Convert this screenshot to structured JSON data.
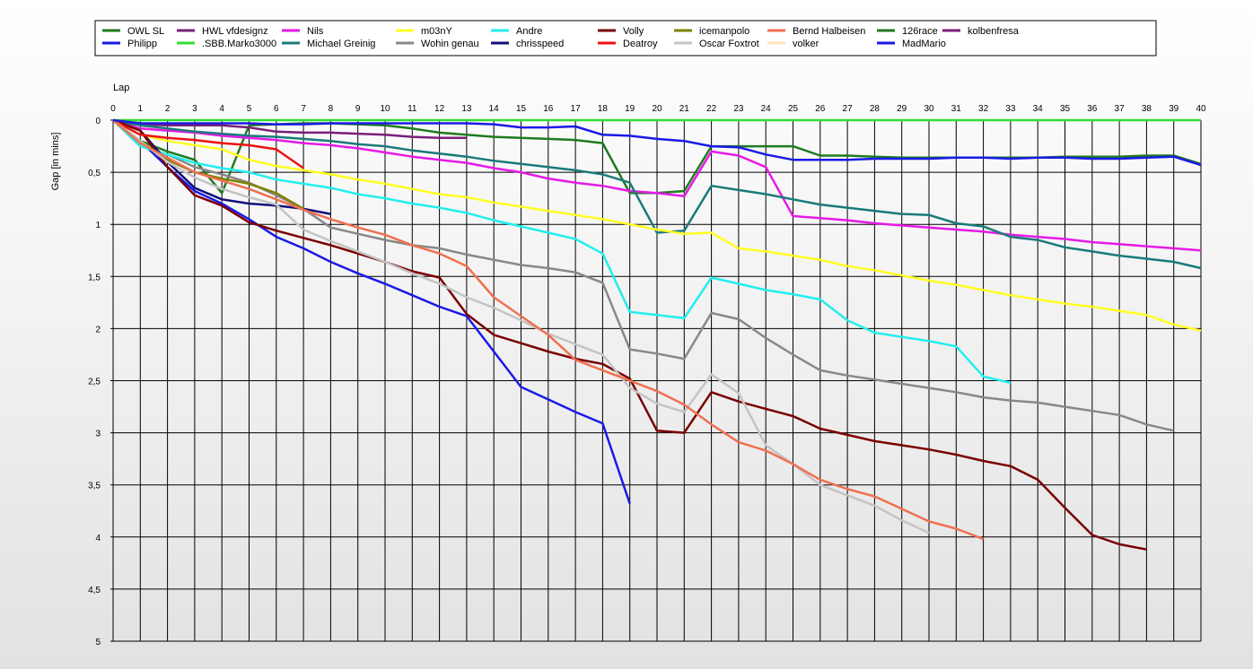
{
  "chart_data": {
    "type": "line",
    "xlabel": "Lap",
    "ylabel": "Gap [in mins]",
    "xlim": [
      0,
      40
    ],
    "ylim": [
      0,
      5
    ],
    "y_inverted": true,
    "x_ticks": [
      0,
      1,
      2,
      3,
      4,
      5,
      6,
      7,
      8,
      9,
      10,
      11,
      12,
      13,
      14,
      15,
      16,
      17,
      18,
      19,
      20,
      21,
      22,
      23,
      24,
      25,
      26,
      27,
      28,
      29,
      30,
      31,
      32,
      33,
      34,
      35,
      36,
      37,
      38,
      39,
      40
    ],
    "y_ticks": [
      {
        "v": 0,
        "label": "0"
      },
      {
        "v": 0.5,
        "label": "0,5"
      },
      {
        "v": 1,
        "label": "1"
      },
      {
        "v": 1.5,
        "label": "1,5"
      },
      {
        "v": 2,
        "label": "2"
      },
      {
        "v": 2.5,
        "label": "2,5"
      },
      {
        "v": 3,
        "label": "3"
      },
      {
        "v": 3.5,
        "label": "3,5"
      },
      {
        "v": 4,
        "label": "4"
      },
      {
        "v": 4.5,
        "label": "4,5"
      },
      {
        "v": 5,
        "label": "5"
      }
    ],
    "grid": true,
    "legend_position": "top",
    "series": [
      {
        "name": "OWL SL",
        "color": "#1e7b1e",
        "x": [
          0,
          1,
          2,
          3,
          4,
          5,
          6,
          7,
          8,
          9,
          10,
          11,
          12,
          13,
          14,
          15,
          16,
          17,
          18,
          19,
          20,
          21,
          22,
          23,
          24,
          25,
          26,
          27,
          28,
          29,
          30,
          31,
          32,
          33,
          34,
          35,
          36,
          37,
          38,
          39,
          40
        ],
        "y": [
          0,
          0.2,
          0.3,
          0.38,
          0.7,
          0.05,
          0.04,
          0.03,
          0.03,
          0.04,
          0.05,
          0.08,
          0.12,
          0.14,
          0.16,
          0.17,
          0.18,
          0.19,
          0.22,
          0.7,
          0.7,
          0.68,
          0.25,
          0.25,
          0.25,
          0.25,
          0.34,
          0.34,
          0.35,
          0.36,
          0.36,
          0.36,
          0.36,
          0.36,
          0.36,
          0.35,
          0.35,
          0.35,
          0.34,
          0.34,
          0.42
        ]
      },
      {
        "name": "Philipp",
        "color": "#1a1ae6",
        "x": [
          0,
          1,
          2,
          3,
          4,
          5,
          6,
          7,
          8,
          9,
          10,
          11,
          12,
          13,
          14,
          15,
          16,
          17,
          18,
          19
        ],
        "y": [
          0,
          0.2,
          0.45,
          0.68,
          0.8,
          0.95,
          1.12,
          1.23,
          1.36,
          1.47,
          1.57,
          1.68,
          1.79,
          1.88,
          2.22,
          2.56,
          2.68,
          2.8,
          2.91,
          3.68
        ]
      },
      {
        "name": "HWL vfdesignz",
        "color": "#7a1f7a",
        "x": [
          0,
          1,
          2,
          3,
          4,
          5,
          6,
          7,
          8,
          9,
          10,
          11,
          12,
          13
        ],
        "y": [
          0,
          0.04,
          0.05,
          0.05,
          0.05,
          0.07,
          0.11,
          0.12,
          0.12,
          0.13,
          0.14,
          0.16,
          0.17,
          0.17
        ]
      },
      {
        "name": ".SBB.Marko3000",
        "color": "#33dd33",
        "x": [
          0,
          1,
          2,
          3,
          4,
          5,
          6,
          7,
          8,
          9,
          10,
          11,
          12,
          13,
          14,
          15,
          16,
          17,
          18,
          19,
          20,
          21,
          22,
          23,
          24,
          25,
          26,
          27,
          28,
          29,
          30,
          31,
          32,
          33,
          34,
          35,
          36,
          37,
          38,
          39,
          40
        ],
        "y": [
          0,
          0,
          0,
          0,
          0,
          0,
          0,
          0,
          0,
          0,
          0,
          0,
          0,
          0,
          0,
          0,
          0,
          0,
          0,
          0,
          0,
          0,
          0,
          0,
          0,
          0,
          0,
          0,
          0,
          0,
          0,
          0,
          0,
          0,
          0,
          0,
          0,
          0,
          0,
          0,
          0
        ]
      },
      {
        "name": "Nils",
        "color": "#e61ae6",
        "x": [
          0,
          1,
          2,
          3,
          4,
          5,
          6,
          7,
          8,
          9,
          10,
          11,
          12,
          13,
          14,
          15,
          16,
          17,
          18,
          19,
          20,
          21,
          22,
          23,
          24,
          25,
          26,
          27,
          28,
          29,
          30,
          31,
          32,
          33,
          34,
          35,
          36,
          37,
          38,
          39,
          40
        ],
        "y": [
          0,
          0.08,
          0.1,
          0.12,
          0.15,
          0.17,
          0.19,
          0.22,
          0.24,
          0.27,
          0.31,
          0.35,
          0.38,
          0.41,
          0.46,
          0.5,
          0.56,
          0.6,
          0.63,
          0.68,
          0.7,
          0.73,
          0.3,
          0.34,
          0.45,
          0.92,
          0.94,
          0.96,
          0.99,
          1.01,
          1.03,
          1.05,
          1.07,
          1.1,
          1.12,
          1.14,
          1.17,
          1.19,
          1.21,
          1.23,
          1.25
        ]
      },
      {
        "name": "Michael Greinig",
        "color": "#1a7a7a",
        "x": [
          0,
          1,
          2,
          3,
          4,
          5,
          6,
          7,
          8,
          9,
          10,
          11,
          12,
          13,
          14,
          15,
          16,
          17,
          18,
          19,
          20,
          21,
          22,
          23,
          24,
          25,
          26,
          27,
          28,
          29,
          30,
          31,
          32,
          33,
          34,
          35,
          36,
          37,
          38,
          39,
          40
        ],
        "y": [
          0,
          0.05,
          0.08,
          0.11,
          0.13,
          0.15,
          0.16,
          0.18,
          0.2,
          0.23,
          0.25,
          0.29,
          0.32,
          0.35,
          0.39,
          0.42,
          0.45,
          0.48,
          0.52,
          0.6,
          1.08,
          1.06,
          0.63,
          0.67,
          0.71,
          0.76,
          0.81,
          0.84,
          0.87,
          0.9,
          0.91,
          0.99,
          1.02,
          1.12,
          1.15,
          1.22,
          1.26,
          1.3,
          1.33,
          1.36,
          1.42
        ]
      },
      {
        "name": "m03nY",
        "color": "#ffff22",
        "x": [
          0,
          1,
          2,
          3,
          4,
          5,
          6,
          7,
          8,
          9,
          10,
          11,
          12,
          13,
          14,
          15,
          16,
          17,
          18,
          19,
          20,
          21,
          22,
          23,
          24,
          25,
          26,
          27,
          28,
          29,
          30,
          31,
          32,
          33,
          34,
          35,
          36,
          37,
          38,
          39,
          40
        ],
        "y": [
          0,
          0.14,
          0.2,
          0.24,
          0.28,
          0.38,
          0.44,
          0.48,
          0.52,
          0.57,
          0.61,
          0.66,
          0.71,
          0.74,
          0.79,
          0.83,
          0.87,
          0.91,
          0.95,
          1,
          1.05,
          1.09,
          1.08,
          1.23,
          1.26,
          1.3,
          1.34,
          1.4,
          1.44,
          1.49,
          1.54,
          1.58,
          1.63,
          1.68,
          1.72,
          1.76,
          1.79,
          1.83,
          1.87,
          1.96,
          2.02
        ]
      },
      {
        "name": "Wohin genau",
        "color": "#888888",
        "x": [
          0,
          1,
          2,
          3,
          4,
          5,
          6,
          7,
          8,
          9,
          10,
          11,
          12,
          13,
          14,
          15,
          16,
          17,
          18,
          19,
          20,
          21,
          22,
          23,
          24,
          25,
          26,
          27,
          28,
          29,
          30,
          31,
          32,
          33,
          34,
          35,
          36,
          37,
          38,
          39
        ],
        "y": [
          0,
          0.25,
          0.33,
          0.45,
          0.52,
          0.6,
          0.72,
          0.85,
          1.03,
          1.09,
          1.15,
          1.2,
          1.23,
          1.29,
          1.34,
          1.39,
          1.42,
          1.46,
          1.56,
          2.2,
          2.24,
          2.29,
          1.85,
          1.91,
          2.09,
          2.25,
          2.4,
          2.45,
          2.49,
          2.53,
          2.57,
          2.61,
          2.66,
          2.69,
          2.71,
          2.75,
          2.79,
          2.83,
          2.92,
          2.98
        ]
      },
      {
        "name": "Andre",
        "color": "#22eeee",
        "x": [
          0,
          1,
          2,
          3,
          4,
          5,
          6,
          7,
          8,
          9,
          10,
          11,
          12,
          13,
          14,
          15,
          16,
          17,
          18,
          19,
          20,
          21,
          22,
          23,
          24,
          25,
          26,
          27,
          28,
          29,
          30,
          31,
          32,
          33
        ],
        "y": [
          0,
          0.25,
          0.33,
          0.41,
          0.46,
          0.5,
          0.57,
          0.61,
          0.65,
          0.71,
          0.75,
          0.8,
          0.84,
          0.89,
          0.96,
          1.02,
          1.08,
          1.14,
          1.28,
          1.84,
          1.87,
          1.9,
          1.51,
          1.57,
          1.63,
          1.67,
          1.72,
          1.92,
          2.04,
          2.08,
          2.12,
          2.17,
          2.46,
          2.52
        ]
      },
      {
        "name": "chrisspeed",
        "color": "#10107a",
        "x": [
          0,
          1,
          2,
          3,
          4,
          5,
          6,
          7,
          8
        ],
        "y": [
          0,
          0.1,
          0.4,
          0.65,
          0.76,
          0.8,
          0.82,
          0.85,
          0.9
        ]
      },
      {
        "name": "Volly",
        "color": "#7a0000",
        "x": [
          0,
          1,
          2,
          3,
          4,
          5,
          6,
          7,
          8,
          9,
          10,
          11,
          12,
          13,
          14,
          15,
          16,
          17,
          18,
          19,
          20,
          21,
          22,
          23,
          24,
          25,
          26,
          27,
          28,
          29,
          30,
          31,
          32,
          33,
          34,
          35,
          36,
          37,
          38
        ],
        "y": [
          0,
          0.1,
          0.45,
          0.72,
          0.82,
          0.98,
          1.06,
          1.13,
          1.2,
          1.28,
          1.36,
          1.45,
          1.51,
          1.86,
          2.06,
          2.14,
          2.22,
          2.29,
          2.34,
          2.48,
          2.98,
          3,
          2.61,
          2.7,
          2.77,
          2.84,
          2.96,
          3.02,
          3.08,
          3.12,
          3.16,
          3.21,
          3.27,
          3.32,
          3.45,
          3.72,
          3.98,
          4.07,
          4.12
        ]
      },
      {
        "name": "Deatroy",
        "color": "#ee1111",
        "x": [
          0,
          1,
          2,
          3,
          4,
          5,
          6,
          7
        ],
        "y": [
          0,
          0.14,
          0.17,
          0.19,
          0.22,
          0.24,
          0.28,
          0.46
        ]
      },
      {
        "name": "icemanpolo",
        "color": "#808000",
        "x": [
          0,
          1,
          2,
          3,
          4,
          5,
          6,
          7
        ],
        "y": [
          0,
          0.2,
          0.38,
          0.5,
          0.56,
          0.61,
          0.7,
          0.85
        ]
      },
      {
        "name": "Oscar Foxtrot",
        "color": "#c4c4c4",
        "x": [
          0,
          1,
          2,
          3,
          4,
          5,
          6,
          7,
          8,
          9,
          10,
          11,
          12,
          13,
          14,
          15,
          16,
          17,
          18,
          19,
          20,
          21,
          22,
          23,
          24,
          25,
          26,
          27,
          28,
          29,
          30
        ],
        "y": [
          0,
          0.2,
          0.4,
          0.55,
          0.66,
          0.74,
          0.81,
          1.05,
          1.16,
          1.26,
          1.36,
          1.47,
          1.57,
          1.7,
          1.8,
          1.92,
          2.05,
          2.15,
          2.25,
          2.57,
          2.72,
          2.8,
          2.44,
          2.62,
          3.12,
          3.3,
          3.5,
          3.6,
          3.7,
          3.84,
          3.96
        ]
      },
      {
        "name": "Bernd Halbeisen",
        "color": "#f07050",
        "x": [
          0,
          1,
          2,
          3,
          4,
          5,
          6,
          7,
          8,
          9,
          10,
          11,
          12,
          13,
          14,
          15,
          16,
          17,
          18,
          19,
          20,
          21,
          22,
          23,
          24,
          25,
          26,
          27,
          28,
          29,
          30,
          31,
          32
        ],
        "y": [
          0,
          0.22,
          0.36,
          0.5,
          0.58,
          0.66,
          0.76,
          0.86,
          0.95,
          1.03,
          1.1,
          1.2,
          1.28,
          1.4,
          1.7,
          1.88,
          2.06,
          2.3,
          2.4,
          2.5,
          2.6,
          2.73,
          2.92,
          3.09,
          3.17,
          3.3,
          3.45,
          3.54,
          3.61,
          3.73,
          3.85,
          3.92,
          4.02
        ]
      }
    ],
    "legend_extra": [
      {
        "name": "volker",
        "color": "#ffe6b8"
      },
      {
        "name": "126race",
        "color": "#1e7b1e"
      },
      {
        "name": "MadMario",
        "color": "#1a1ae6"
      },
      {
        "name": "kolbenfresa",
        "color": "#7a1f7a"
      }
    ],
    "legend_order": [
      "OWL SL",
      "Philipp",
      "HWL vfdesignz",
      ".SBB.Marko3000",
      "Nils",
      "Michael Greinig",
      "m03nY",
      "Wohin genau",
      "Andre",
      "chrisspeed",
      "Volly",
      "Deatroy",
      "icemanpolo",
      "Oscar Foxtrot",
      "Bernd Halbeisen",
      "volker",
      "126race",
      "MadMario",
      "kolbenfresa"
    ],
    "overlay_series": [
      {
        "name": "MadMario",
        "color": "#1a1ae6",
        "x": [
          0,
          1,
          2,
          3,
          4,
          5,
          6,
          7,
          8,
          9,
          10,
          11,
          12,
          13,
          14,
          15,
          16,
          17,
          18,
          19,
          20,
          21,
          22,
          23,
          24,
          25,
          26,
          27,
          28,
          29,
          30,
          31,
          32,
          33,
          34,
          35,
          36,
          37,
          38,
          39,
          40
        ],
        "y": [
          0,
          0.03,
          0.03,
          0.03,
          0.03,
          0.03,
          0.04,
          0.04,
          0.03,
          0.03,
          0.03,
          0.03,
          0.03,
          0.03,
          0.04,
          0.07,
          0.07,
          0.06,
          0.14,
          0.15,
          0.18,
          0.2,
          0.25,
          0.26,
          0.33,
          0.38,
          0.38,
          0.38,
          0.37,
          0.37,
          0.37,
          0.36,
          0.36,
          0.37,
          0.36,
          0.36,
          0.37,
          0.37,
          0.36,
          0.35,
          0.43
        ]
      }
    ]
  }
}
